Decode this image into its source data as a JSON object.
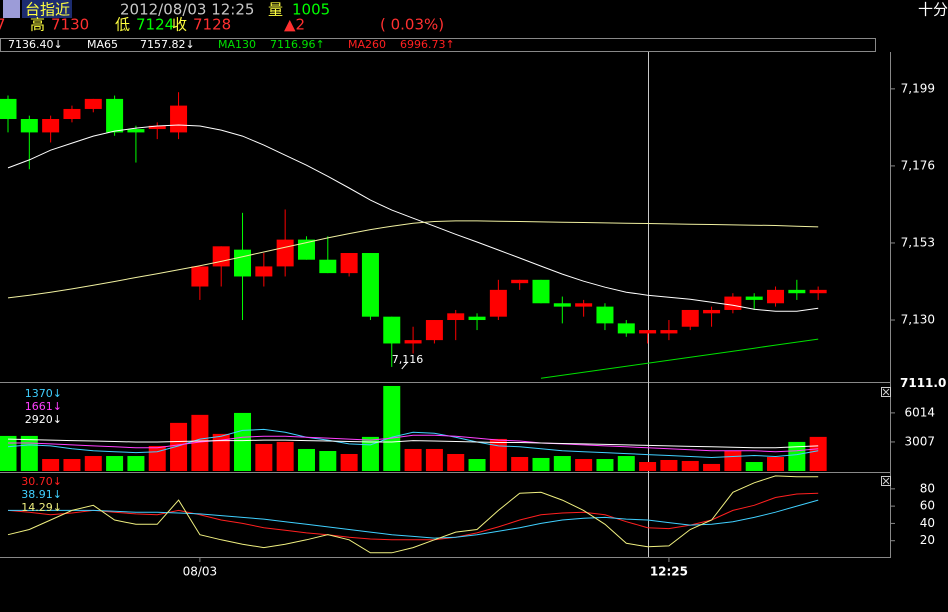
{
  "header": {
    "left": "7",
    "symbol": "台指近",
    "datetime": "2012/08/03 12:25",
    "vol_label": "量",
    "vol": "1005",
    "high_label": "高",
    "high": "7130",
    "low_label": "低",
    "low": "7124",
    "close_label": "收",
    "close": "7128",
    "change": "▲2",
    "change_pct": "( 0.03%)",
    "right": "十分"
  },
  "chart_data": [
    {
      "type": "candlestick",
      "up_color": "#ff0000",
      "down_color": "#00ff00",
      "open": [
        7196,
        7190,
        7186,
        7190,
        7193,
        7196,
        7187,
        7187,
        7186,
        7140,
        7146,
        7151,
        7143,
        7146,
        7154,
        7148,
        7144,
        7150,
        7131,
        7123,
        7124,
        7130,
        7131,
        7131,
        7141,
        7142,
        7135,
        7134,
        7134,
        7129,
        7126,
        7126,
        7128,
        7132,
        7133,
        7137,
        7135,
        7139,
        7138
      ],
      "high": [
        7197,
        7191,
        7191,
        7194,
        7196,
        7197,
        7188,
        7189,
        7198,
        7146,
        7152,
        7162,
        7150,
        7163,
        7155,
        7155,
        7150,
        7150,
        7131,
        7128,
        7130,
        7133,
        7132,
        7142,
        7142,
        7142,
        7137,
        7136,
        7135,
        7130,
        7127,
        7130,
        7133,
        7134,
        7138,
        7138,
        7140,
        7142,
        7140
      ],
      "low": [
        7186,
        7175,
        7183,
        7189,
        7192,
        7185,
        7177,
        7184,
        7184,
        7136,
        7140,
        7130,
        7140,
        7143,
        7148,
        7144,
        7143,
        7130,
        7116,
        7120,
        7123,
        7124,
        7127,
        7130,
        7139,
        7135,
        7129,
        7131,
        7127,
        7125,
        7123,
        7124,
        7127,
        7128,
        7132,
        7133,
        7134,
        7136,
        7136
      ],
      "close": [
        7190,
        7186,
        7190,
        7193,
        7196,
        7186,
        7186,
        7188,
        7194,
        7146,
        7152,
        7143,
        7146,
        7154,
        7148,
        7144,
        7150,
        7131,
        7123,
        7124,
        7130,
        7132,
        7130,
        7139,
        7142,
        7135,
        7134,
        7135,
        7129,
        7126,
        7127,
        7127,
        7133,
        7133,
        7137,
        7136,
        7139,
        7138,
        7139
      ],
      "series": [
        {
          "legend_value": "7136.40↓",
          "color": "#ffffff",
          "values": [
            7175.4,
            7177.8,
            7180.7,
            7182.8,
            7184.9,
            7186.4,
            7187.3,
            7187.9,
            7188.2,
            7187.9,
            7186.7,
            7184.9,
            7182.2,
            7179.2,
            7176.2,
            7172.9,
            7169.4,
            7165.8,
            7162.8,
            7160.4,
            7158,
            7155.6,
            7153.3,
            7150.9,
            7148.5,
            7146.1,
            7143.7,
            7141.6,
            7139.8,
            7138.3,
            7137.4,
            7136.8,
            7136.2,
            7135.3,
            7134.4,
            7133.2,
            7132.6,
            7132.6,
            7133.5
          ]
        },
        {
          "name": "MA65",
          "legend_value": "7157.82↓",
          "color": "#f0f0a0",
          "values": [
            7136.6,
            7137.4,
            7138.3,
            7139.3,
            7140.4,
            7141.5,
            7142.7,
            7143.8,
            7145,
            7146.2,
            7147.5,
            7148.9,
            7150.3,
            7151.7,
            7153.1,
            7154.5,
            7155.8,
            7157,
            7158,
            7158.9,
            7159.4,
            7159.6,
            7159.6,
            7159.5,
            7159.4,
            7159.3,
            7159.2,
            7159.1,
            7159,
            7158.9,
            7158.8,
            7158.7,
            7158.6,
            7158.5,
            7158.4,
            7158.3,
            7158.2,
            7158,
            7157.8
          ]
        },
        {
          "name": "MA130",
          "legend_value": "7116.96↑",
          "color": "#00e000",
          "values": [
            null,
            null,
            null,
            null,
            null,
            null,
            null,
            null,
            null,
            null,
            null,
            null,
            null,
            null,
            null,
            null,
            null,
            null,
            null,
            null,
            null,
            null,
            null,
            null,
            null,
            7112.6,
            7113.5,
            7114.4,
            7115.3,
            7116.2,
            7117.1,
            7118,
            7118.9,
            7119.8,
            7120.7,
            7121.6,
            7122.5,
            7123.4,
            7124.3
          ]
        },
        {
          "name": "MA260",
          "legend_value": "6996.73↑",
          "color": "#ff2020",
          "values": [
            null,
            null,
            null,
            null,
            null,
            null,
            null,
            null,
            null,
            null,
            null,
            null,
            null,
            null,
            null,
            null,
            null,
            null,
            null,
            null,
            null,
            null,
            null,
            null,
            null,
            null,
            null,
            null,
            null,
            null,
            null,
            null,
            null,
            null,
            null,
            null,
            null,
            null,
            null
          ]
        }
      ],
      "annotations": [
        {
          "value": 7116,
          "label": "7,116"
        }
      ],
      "cursor_label": {
        "value": 7111.0,
        "label": "7111.0"
      },
      "ylim": [
        7111.5,
        7210
      ],
      "yticks": [
        {
          "value": 7130,
          "label": "7,130"
        },
        {
          "value": 7153,
          "label": "7,153"
        },
        {
          "value": 7176,
          "label": "7,176"
        },
        {
          "value": 7199,
          "label": "7,199"
        }
      ]
    },
    {
      "type": "volume",
      "values": [
        3630,
        3630,
        1240,
        1240,
        1550,
        1550,
        1550,
        2590,
        4980,
        5810,
        3840,
        6010,
        2800,
        3010,
        2280,
        2070,
        1760,
        3530,
        8800,
        2280,
        2280,
        1760,
        1240,
        3320,
        1450,
        1350,
        1550,
        1240,
        1240,
        1550,
        930,
        1140,
        1040,
        730,
        2070,
        930,
        1450,
        3010,
        3530
      ],
      "series": [
        {
          "name": "1370↓",
          "color": "#40d0ff",
          "values": [
            2500,
            2700,
            2600,
            2300,
            2100,
            2000,
            1900,
            2000,
            2600,
            3300,
            3600,
            4200,
            4300,
            4000,
            3500,
            3200,
            2800,
            2700,
            3500,
            4000,
            3900,
            3500,
            3000,
            2600,
            2500,
            2300,
            2100,
            2000,
            1900,
            1800,
            1700,
            1600,
            1500,
            1400,
            1500,
            1600,
            1500,
            1700,
            2100
          ]
        },
        {
          "name": "1661↓",
          "color": "#ff40ff",
          "values": [
            2900,
            2900,
            2800,
            2700,
            2600,
            2500,
            2400,
            2400,
            2700,
            3000,
            3200,
            3500,
            3600,
            3600,
            3500,
            3400,
            3300,
            3200,
            3400,
            3700,
            3700,
            3600,
            3400,
            3200,
            3100,
            2900,
            2800,
            2700,
            2600,
            2500,
            2400,
            2300,
            2200,
            2100,
            2100,
            2100,
            2000,
            2100,
            2300
          ]
        },
        {
          "name": "2920↓",
          "color": "#ffffff",
          "values": [
            3300,
            3250,
            3200,
            3150,
            3100,
            3050,
            3000,
            3000,
            3050,
            3100,
            3150,
            3150,
            3200,
            3200,
            3150,
            3100,
            3050,
            3000,
            3000,
            3150,
            3100,
            3050,
            3000,
            2950,
            2950,
            2900,
            2850,
            2800,
            2750,
            2700,
            2650,
            2600,
            2550,
            2500,
            2450,
            2400,
            2400,
            2500,
            2600
          ]
        }
      ],
      "ylim": [
        0,
        8900
      ],
      "yticks": [
        3007,
        6014
      ]
    },
    {
      "type": "line",
      "categories": [
        null,
        null,
        null,
        null,
        null,
        null,
        null,
        null,
        null,
        "08/03",
        null,
        null,
        null,
        null,
        null,
        null,
        null,
        null,
        null,
        null,
        null,
        null,
        null,
        null,
        null,
        null,
        null,
        null,
        null,
        null,
        null,
        "12:25",
        null,
        null,
        null,
        null,
        null,
        null,
        null
      ],
      "series": [
        {
          "name": "30.70↓",
          "color": "#ff2020",
          "values": [
            55,
            53,
            50,
            52,
            55,
            53,
            51,
            50,
            55,
            50,
            44,
            40,
            35,
            32,
            29,
            27,
            24,
            22,
            21,
            21,
            21,
            24,
            29,
            36,
            44,
            50,
            52,
            53,
            50,
            42,
            35,
            34,
            38,
            44,
            55,
            61,
            70,
            74,
            75
          ]
        },
        {
          "name": "38.91↓",
          "color": "#40d0ff",
          "values": [
            55,
            55,
            55,
            55,
            55,
            54,
            53,
            53,
            52,
            51,
            49,
            47,
            45,
            42,
            39,
            36,
            33,
            30,
            27,
            25,
            23,
            24,
            27,
            31,
            35,
            40,
            44,
            46,
            47,
            45,
            44,
            41,
            38,
            39,
            42,
            47,
            53,
            60,
            67
          ]
        },
        {
          "name": "14.29↓",
          "color": "#f0f080",
          "values": [
            27,
            33,
            44,
            55,
            61,
            44,
            39,
            39,
            67,
            27,
            21,
            16,
            12,
            16,
            21,
            27,
            21,
            6,
            6,
            12,
            21,
            30,
            33,
            55,
            75,
            76,
            67,
            55,
            39,
            17,
            13,
            14,
            33,
            44,
            76,
            87,
            95,
            94,
            94
          ]
        }
      ],
      "ylim": [
        0,
        96
      ],
      "yticks": [
        20,
        40,
        60,
        80
      ]
    }
  ]
}
